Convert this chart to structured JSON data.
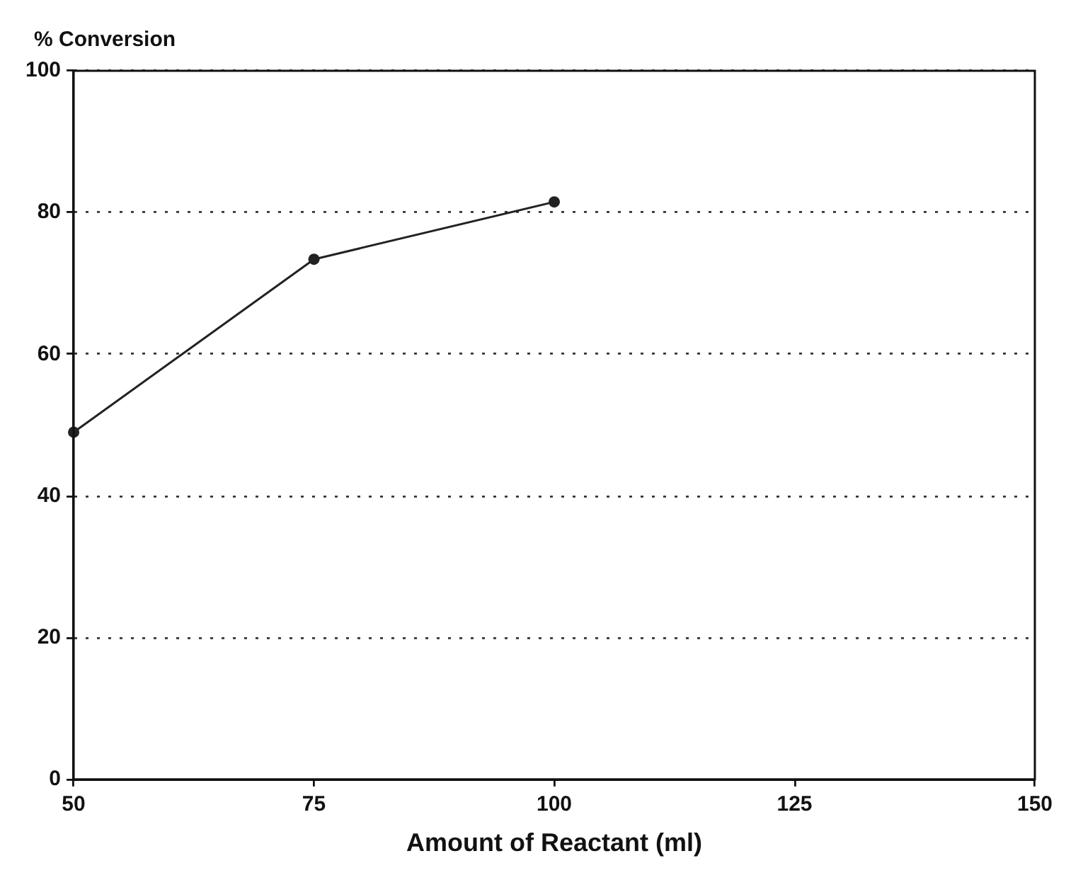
{
  "chart_data": {
    "type": "line",
    "xlabel": "Amount of Reactant (ml)",
    "ylabel": "% Conversion",
    "x": [
      50,
      75,
      100
    ],
    "series": [
      {
        "color": "#222222",
        "values": [
          49,
          73.4,
          81.5
        ]
      }
    ],
    "xlim": [
      50,
      150
    ],
    "xticks": [
      50,
      75,
      100,
      125,
      150
    ],
    "ylim": [
      0,
      100
    ],
    "yticks": [
      0,
      20,
      40,
      60,
      80,
      100
    ],
    "grid": "y",
    "marker": "circle",
    "line_style": "solid",
    "legend": false
  }
}
